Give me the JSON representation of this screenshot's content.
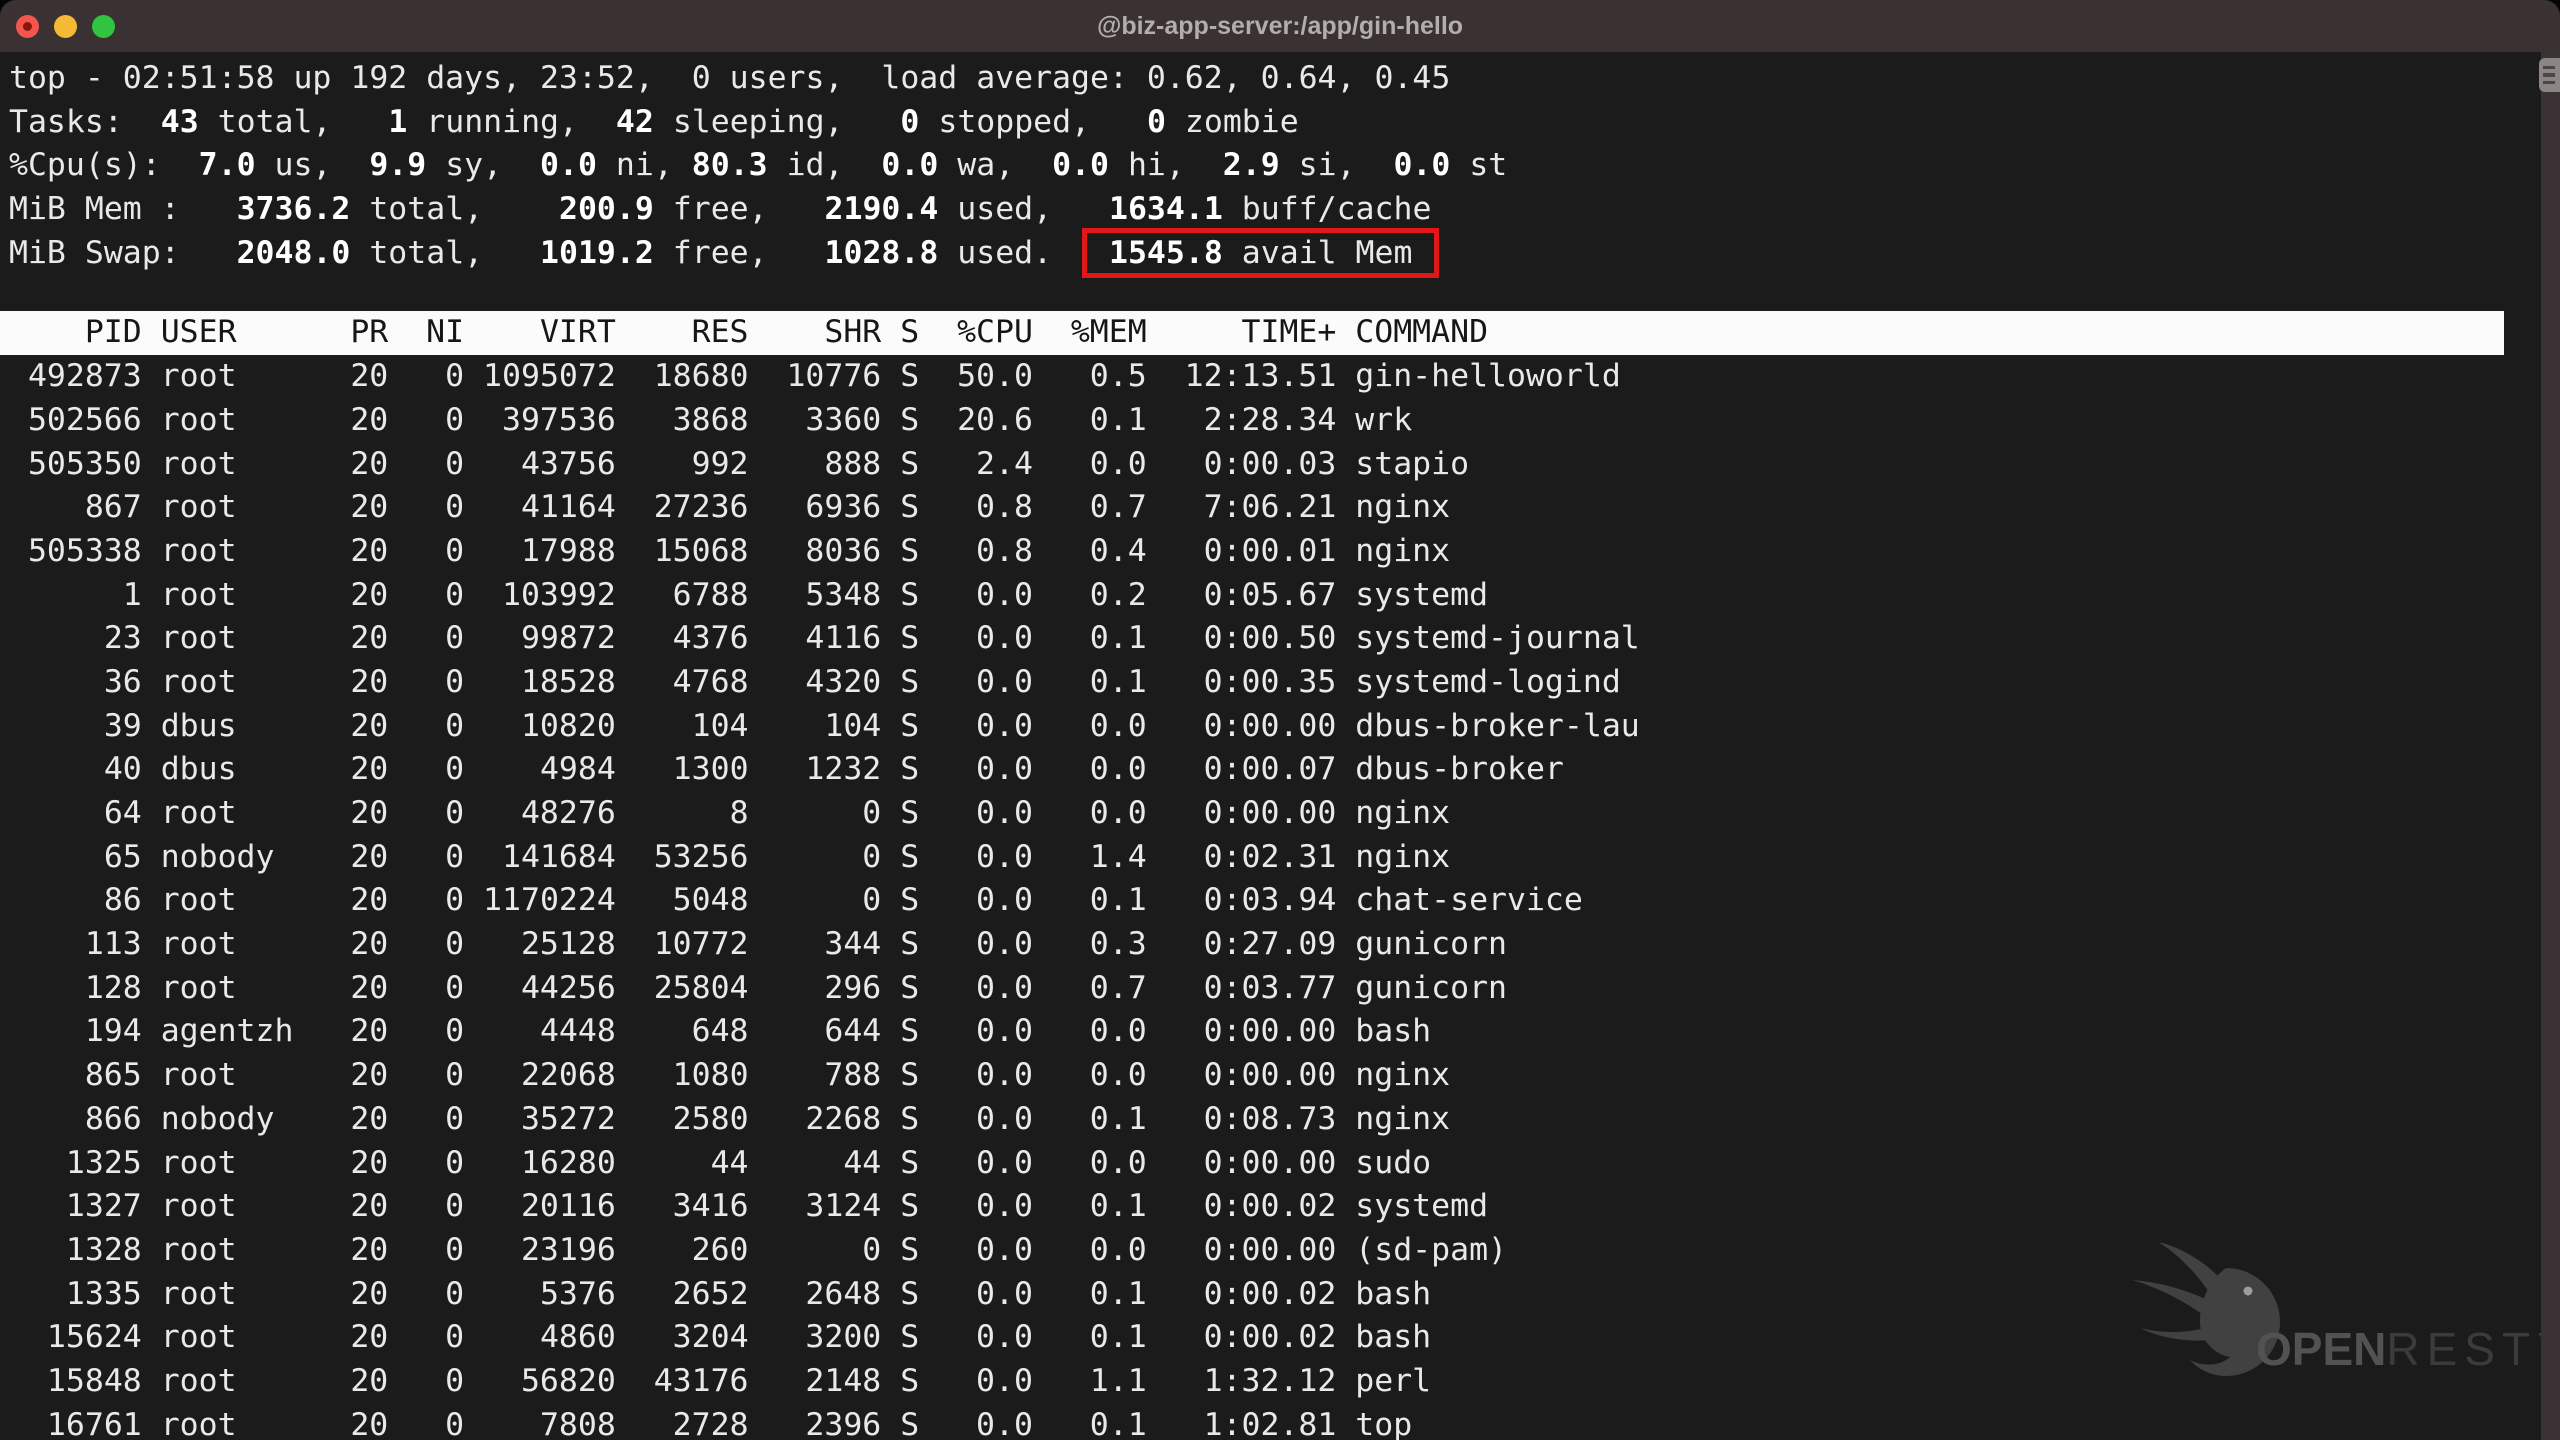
{
  "colors": {
    "titlebar_bg": "#393132",
    "titlebar_text": "#b3adac",
    "close_red": "#f4554d",
    "minimize_yellow": "#f5b935",
    "zoom_green": "#32c440",
    "terminal_bg": "#1b1b1b",
    "terminal_text": "#e9e9e9",
    "bold_text": "#ffffff",
    "header_bg": "#fbfbfb",
    "header_text": "#161616",
    "highlight_red": "#e31717",
    "scrollbar_track": "#3a3234",
    "scrollbar_button": "#8b8684"
  },
  "window": {
    "title": "@biz-app-server:/app/gin-hello"
  },
  "top": {
    "summary": {
      "uptime_line": "top - 02:51:58 up 192 days, 23:52,  0 users,  load average: 0.62, 0.64, 0.45",
      "tasks_segments": [
        {
          "t": "Tasks: "
        },
        {
          "t": " 43",
          "b": true
        },
        {
          "t": " total, "
        },
        {
          "t": "  1",
          "b": true
        },
        {
          "t": " running, "
        },
        {
          "t": " 42",
          "b": true
        },
        {
          "t": " sleeping, "
        },
        {
          "t": "  0",
          "b": true
        },
        {
          "t": " stopped, "
        },
        {
          "t": "  0",
          "b": true
        },
        {
          "t": " zombie"
        }
      ],
      "cpu_segments": [
        {
          "t": "%Cpu(s): "
        },
        {
          "t": " 7.0",
          "b": true
        },
        {
          "t": " us, "
        },
        {
          "t": " 9.9",
          "b": true
        },
        {
          "t": " sy, "
        },
        {
          "t": " 0.0",
          "b": true
        },
        {
          "t": " ni, "
        },
        {
          "t": "80.3",
          "b": true
        },
        {
          "t": " id, "
        },
        {
          "t": " 0.0",
          "b": true
        },
        {
          "t": " wa, "
        },
        {
          "t": " 0.0",
          "b": true
        },
        {
          "t": " hi, "
        },
        {
          "t": " 2.9",
          "b": true
        },
        {
          "t": " si, "
        },
        {
          "t": " 0.0",
          "b": true
        },
        {
          "t": " st"
        }
      ],
      "mem_segments": [
        {
          "t": "MiB Mem :"
        },
        {
          "t": "   3736.2",
          "b": true
        },
        {
          "t": " total,"
        },
        {
          "t": "    200.9",
          "b": true
        },
        {
          "t": " free,"
        },
        {
          "t": "   2190.4",
          "b": true
        },
        {
          "t": " used,"
        },
        {
          "t": "   1634.1",
          "b": true
        },
        {
          "t": " buff/cache"
        }
      ],
      "swap_prefix_segments": [
        {
          "t": "MiB Swap:"
        },
        {
          "t": "   2048.0",
          "b": true
        },
        {
          "t": " total,"
        },
        {
          "t": "   1019.2",
          "b": true
        },
        {
          "t": " free,"
        },
        {
          "t": "   1028.8",
          "b": true
        },
        {
          "t": " used.  "
        }
      ],
      "swap_highlight_segments": [
        {
          "t": " "
        },
        {
          "t": "1545.8",
          "b": true
        },
        {
          "t": " avail Mem "
        }
      ]
    },
    "table": {
      "columns": {
        "pid": "PID",
        "user": "USER",
        "pr": "PR",
        "ni": "NI",
        "virt": "VIRT",
        "res": "RES",
        "shr": "SHR",
        "s": "S",
        "cpu": "%CPU",
        "mem": "%MEM",
        "time": "TIME+",
        "command": "COMMAND"
      },
      "processes": [
        {
          "pid": "492873",
          "user": "root",
          "pr": "20",
          "ni": "0",
          "virt": "1095072",
          "res": "18680",
          "shr": "10776",
          "s": "S",
          "cpu": "50.0",
          "mem": "0.5",
          "time": "12:13.51",
          "command": "gin-helloworld"
        },
        {
          "pid": "502566",
          "user": "root",
          "pr": "20",
          "ni": "0",
          "virt": "397536",
          "res": "3868",
          "shr": "3360",
          "s": "S",
          "cpu": "20.6",
          "mem": "0.1",
          "time": "2:28.34",
          "command": "wrk"
        },
        {
          "pid": "505350",
          "user": "root",
          "pr": "20",
          "ni": "0",
          "virt": "43756",
          "res": "992",
          "shr": "888",
          "s": "S",
          "cpu": "2.4",
          "mem": "0.0",
          "time": "0:00.03",
          "command": "stapio"
        },
        {
          "pid": "867",
          "user": "root",
          "pr": "20",
          "ni": "0",
          "virt": "41164",
          "res": "27236",
          "shr": "6936",
          "s": "S",
          "cpu": "0.8",
          "mem": "0.7",
          "time": "7:06.21",
          "command": "nginx"
        },
        {
          "pid": "505338",
          "user": "root",
          "pr": "20",
          "ni": "0",
          "virt": "17988",
          "res": "15068",
          "shr": "8036",
          "s": "S",
          "cpu": "0.8",
          "mem": "0.4",
          "time": "0:00.01",
          "command": "nginx"
        },
        {
          "pid": "1",
          "user": "root",
          "pr": "20",
          "ni": "0",
          "virt": "103992",
          "res": "6788",
          "shr": "5348",
          "s": "S",
          "cpu": "0.0",
          "mem": "0.2",
          "time": "0:05.67",
          "command": "systemd"
        },
        {
          "pid": "23",
          "user": "root",
          "pr": "20",
          "ni": "0",
          "virt": "99872",
          "res": "4376",
          "shr": "4116",
          "s": "S",
          "cpu": "0.0",
          "mem": "0.1",
          "time": "0:00.50",
          "command": "systemd-journal"
        },
        {
          "pid": "36",
          "user": "root",
          "pr": "20",
          "ni": "0",
          "virt": "18528",
          "res": "4768",
          "shr": "4320",
          "s": "S",
          "cpu": "0.0",
          "mem": "0.1",
          "time": "0:00.35",
          "command": "systemd-logind"
        },
        {
          "pid": "39",
          "user": "dbus",
          "pr": "20",
          "ni": "0",
          "virt": "10820",
          "res": "104",
          "shr": "104",
          "s": "S",
          "cpu": "0.0",
          "mem": "0.0",
          "time": "0:00.00",
          "command": "dbus-broker-lau"
        },
        {
          "pid": "40",
          "user": "dbus",
          "pr": "20",
          "ni": "0",
          "virt": "4984",
          "res": "1300",
          "shr": "1232",
          "s": "S",
          "cpu": "0.0",
          "mem": "0.0",
          "time": "0:00.07",
          "command": "dbus-broker"
        },
        {
          "pid": "64",
          "user": "root",
          "pr": "20",
          "ni": "0",
          "virt": "48276",
          "res": "8",
          "shr": "0",
          "s": "S",
          "cpu": "0.0",
          "mem": "0.0",
          "time": "0:00.00",
          "command": "nginx"
        },
        {
          "pid": "65",
          "user": "nobody",
          "pr": "20",
          "ni": "0",
          "virt": "141684",
          "res": "53256",
          "shr": "0",
          "s": "S",
          "cpu": "0.0",
          "mem": "1.4",
          "time": "0:02.31",
          "command": "nginx"
        },
        {
          "pid": "86",
          "user": "root",
          "pr": "20",
          "ni": "0",
          "virt": "1170224",
          "res": "5048",
          "shr": "0",
          "s": "S",
          "cpu": "0.0",
          "mem": "0.1",
          "time": "0:03.94",
          "command": "chat-service"
        },
        {
          "pid": "113",
          "user": "root",
          "pr": "20",
          "ni": "0",
          "virt": "25128",
          "res": "10772",
          "shr": "344",
          "s": "S",
          "cpu": "0.0",
          "mem": "0.3",
          "time": "0:27.09",
          "command": "gunicorn"
        },
        {
          "pid": "128",
          "user": "root",
          "pr": "20",
          "ni": "0",
          "virt": "44256",
          "res": "25804",
          "shr": "296",
          "s": "S",
          "cpu": "0.0",
          "mem": "0.7",
          "time": "0:03.77",
          "command": "gunicorn"
        },
        {
          "pid": "194",
          "user": "agentzh",
          "pr": "20",
          "ni": "0",
          "virt": "4448",
          "res": "648",
          "shr": "644",
          "s": "S",
          "cpu": "0.0",
          "mem": "0.0",
          "time": "0:00.00",
          "command": "bash"
        },
        {
          "pid": "865",
          "user": "root",
          "pr": "20",
          "ni": "0",
          "virt": "22068",
          "res": "1080",
          "shr": "788",
          "s": "S",
          "cpu": "0.0",
          "mem": "0.0",
          "time": "0:00.00",
          "command": "nginx"
        },
        {
          "pid": "866",
          "user": "nobody",
          "pr": "20",
          "ni": "0",
          "virt": "35272",
          "res": "2580",
          "shr": "2268",
          "s": "S",
          "cpu": "0.0",
          "mem": "0.1",
          "time": "0:08.73",
          "command": "nginx"
        },
        {
          "pid": "1325",
          "user": "root",
          "pr": "20",
          "ni": "0",
          "virt": "16280",
          "res": "44",
          "shr": "44",
          "s": "S",
          "cpu": "0.0",
          "mem": "0.0",
          "time": "0:00.00",
          "command": "sudo"
        },
        {
          "pid": "1327",
          "user": "root",
          "pr": "20",
          "ni": "0",
          "virt": "20116",
          "res": "3416",
          "shr": "3124",
          "s": "S",
          "cpu": "0.0",
          "mem": "0.1",
          "time": "0:00.02",
          "command": "systemd"
        },
        {
          "pid": "1328",
          "user": "root",
          "pr": "20",
          "ni": "0",
          "virt": "23196",
          "res": "260",
          "shr": "0",
          "s": "S",
          "cpu": "0.0",
          "mem": "0.0",
          "time": "0:00.00",
          "command": "(sd-pam)"
        },
        {
          "pid": "1335",
          "user": "root",
          "pr": "20",
          "ni": "0",
          "virt": "5376",
          "res": "2652",
          "shr": "2648",
          "s": "S",
          "cpu": "0.0",
          "mem": "0.1",
          "time": "0:00.02",
          "command": "bash"
        },
        {
          "pid": "15624",
          "user": "root",
          "pr": "20",
          "ni": "0",
          "virt": "4860",
          "res": "3204",
          "shr": "3200",
          "s": "S",
          "cpu": "0.0",
          "mem": "0.1",
          "time": "0:00.02",
          "command": "bash"
        },
        {
          "pid": "15848",
          "user": "root",
          "pr": "20",
          "ni": "0",
          "virt": "56820",
          "res": "43176",
          "shr": "2148",
          "s": "S",
          "cpu": "0.0",
          "mem": "1.1",
          "time": "1:32.12",
          "command": "perl"
        },
        {
          "pid": "16761",
          "user": "root",
          "pr": "20",
          "ni": "0",
          "virt": "7808",
          "res": "2728",
          "shr": "2396",
          "s": "S",
          "cpu": "0.0",
          "mem": "0.1",
          "time": "1:02.81",
          "command": "top"
        }
      ]
    }
  },
  "watermark": {
    "brand_bold": "OPEN",
    "brand_light": "RESTY"
  }
}
